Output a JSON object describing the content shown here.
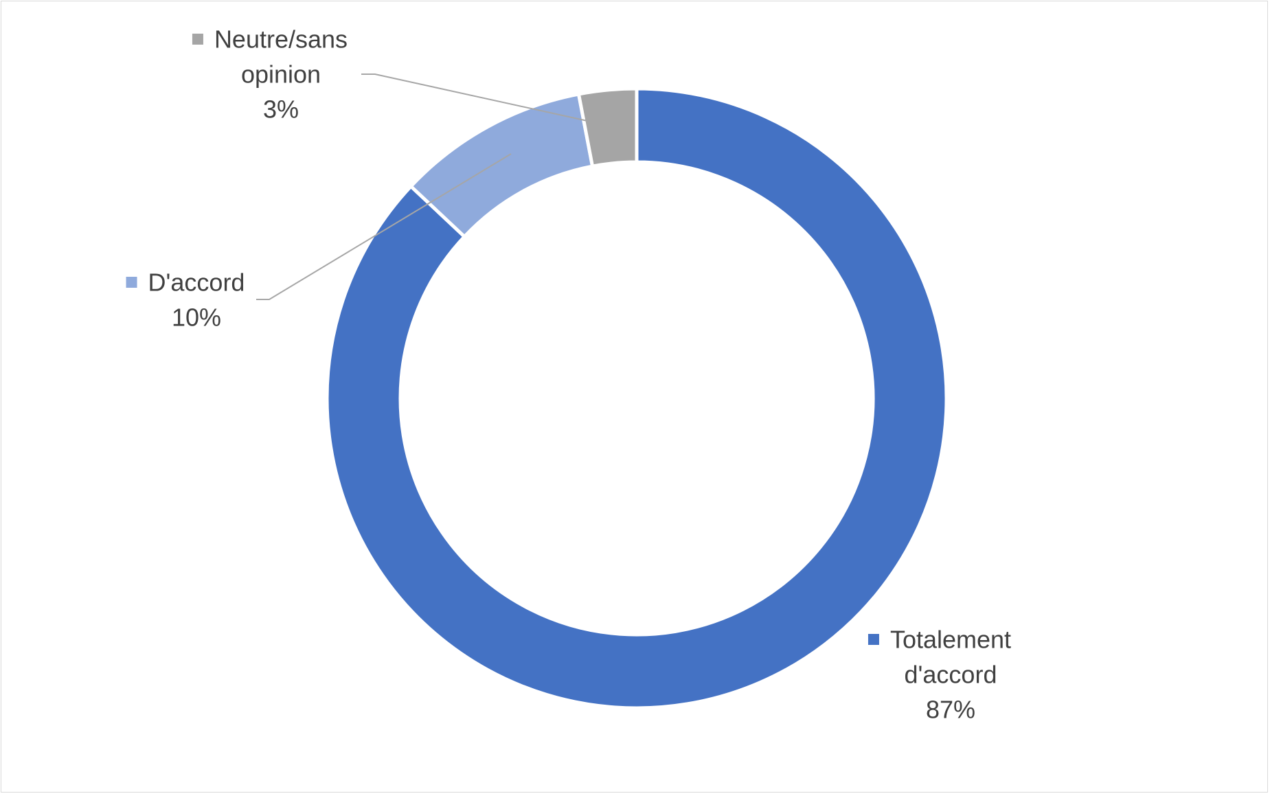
{
  "chart_data": {
    "type": "pie",
    "variant": "donut",
    "title": "",
    "slices": [
      {
        "label_lines": [
          "Totalement",
          "d'accord"
        ],
        "label": "Totalement d'accord",
        "value": 87,
        "value_label": "87%",
        "color": "#4472c4"
      },
      {
        "label_lines": [
          "D'accord"
        ],
        "label": "D'accord",
        "value": 10,
        "value_label": "10%",
        "color": "#8faadc"
      },
      {
        "label_lines": [
          "Neutre/sans",
          "opinion"
        ],
        "label": "Neutre/sans opinion",
        "value": 3,
        "value_label": "3%",
        "color": "#a5a5a5"
      }
    ],
    "direction": "counterclockwise",
    "start_angle": "12 o'clock",
    "legend": "none",
    "data_labels": "category name with legend key and percentage",
    "leader_line_color": "#a6a6a6",
    "label_text_color": "#404040",
    "border_color": "#d9d9d9"
  }
}
